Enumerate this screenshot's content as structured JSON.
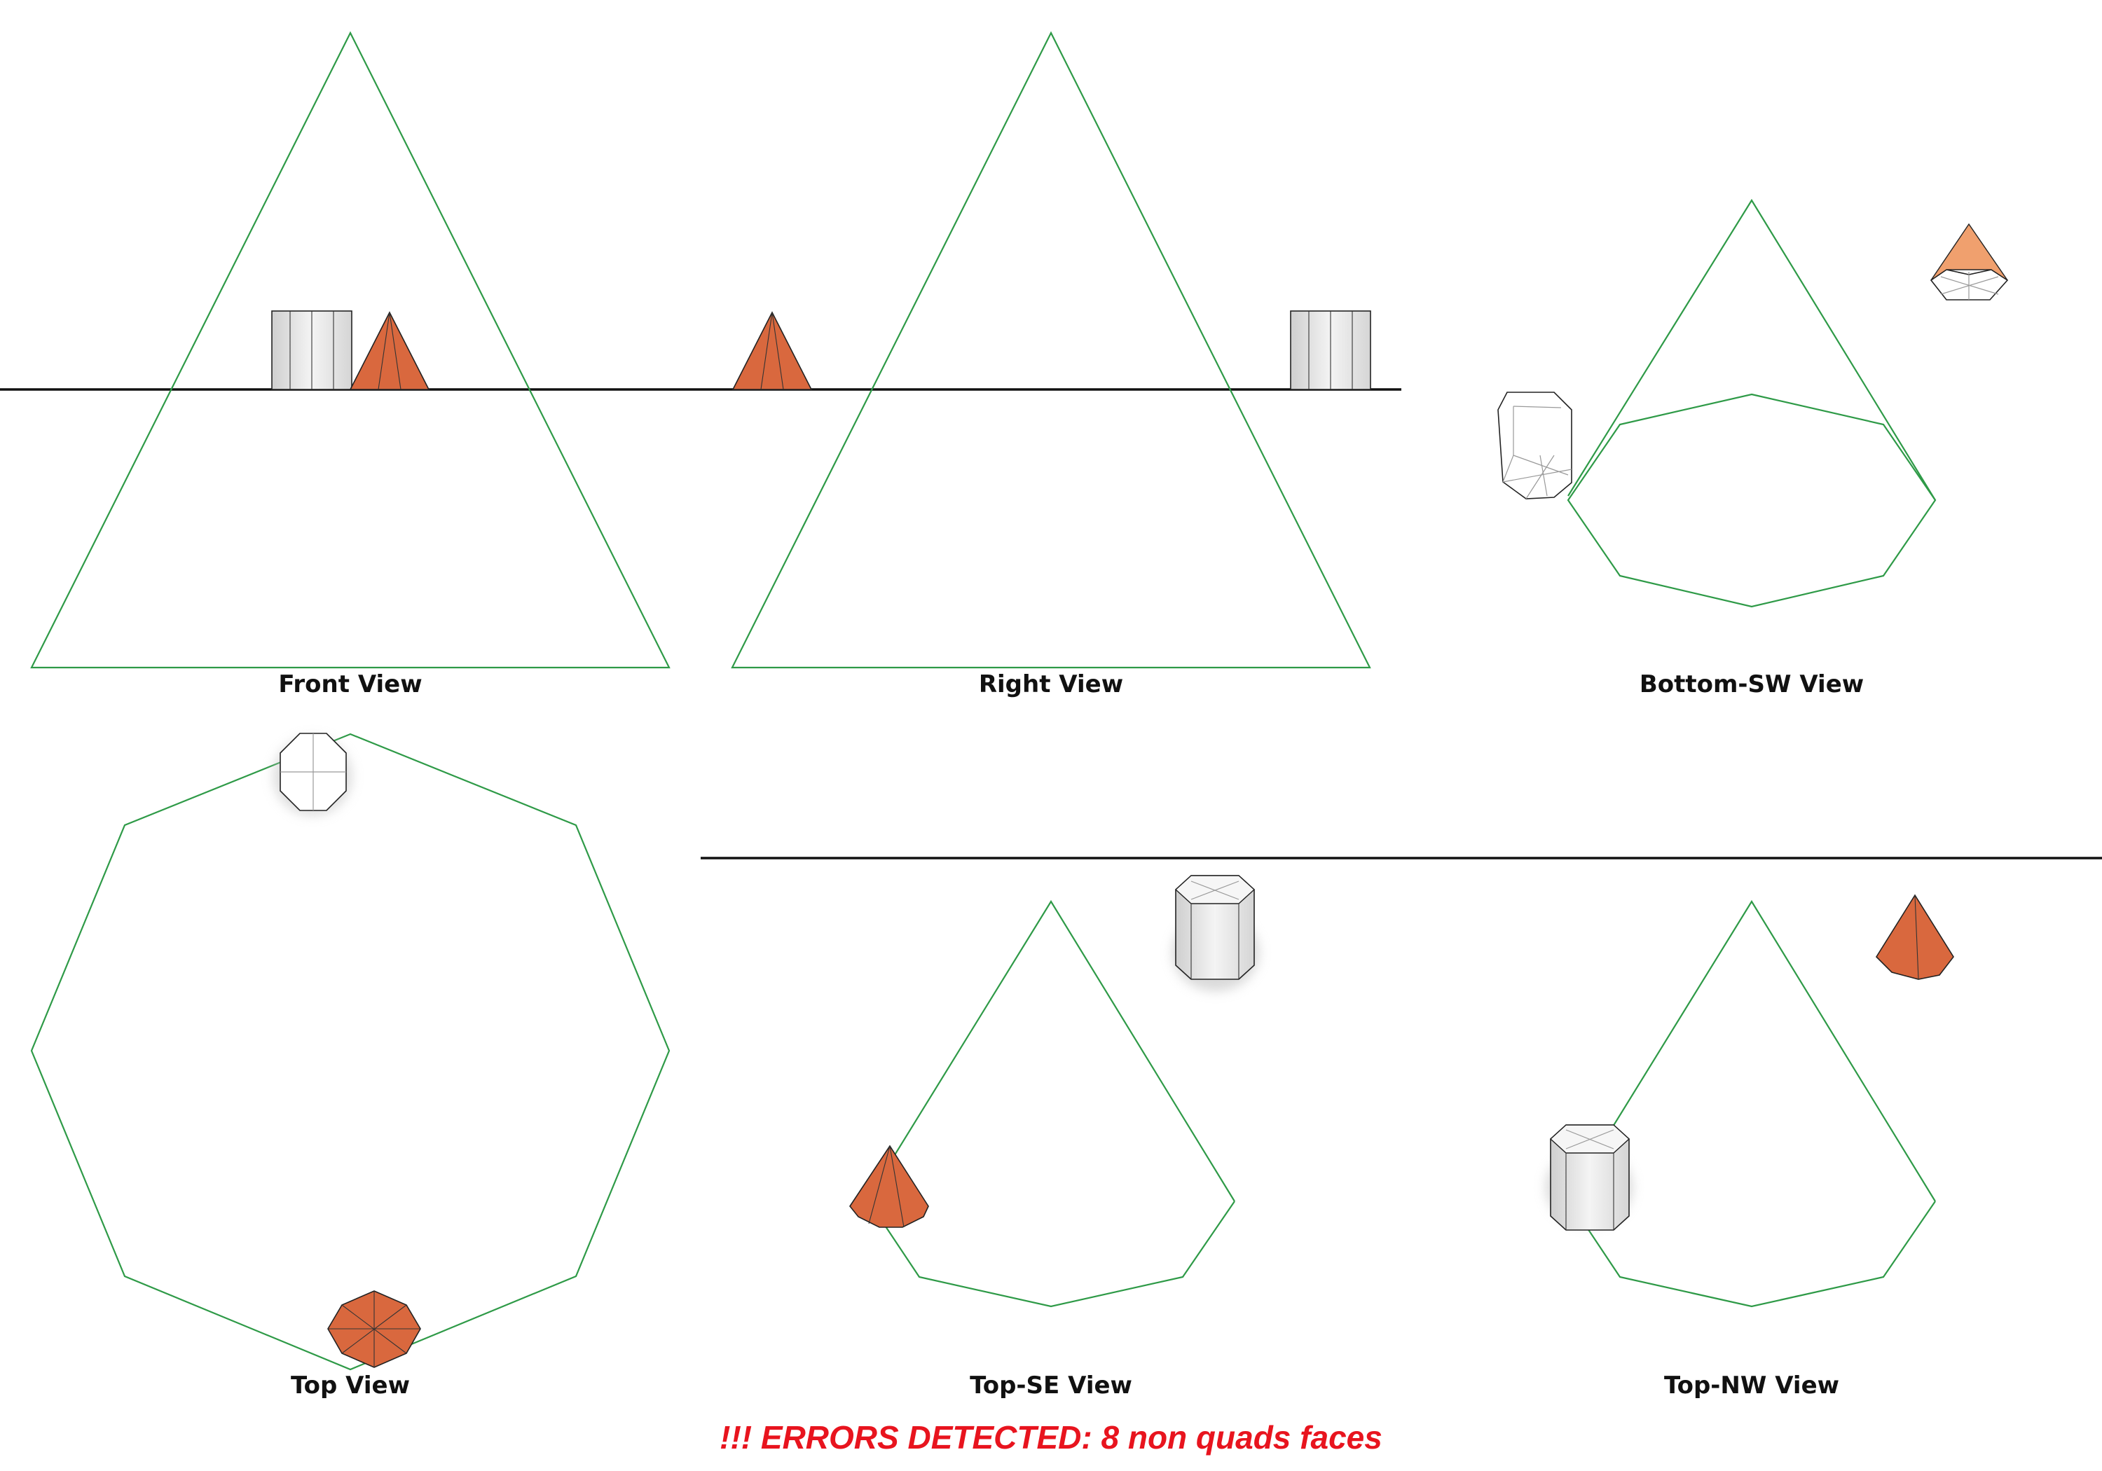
{
  "views": {
    "front": "Front View",
    "right": "Right View",
    "bottom_sw": "Bottom-SW View",
    "top": "Top View",
    "top_se": "Top-SE View",
    "top_nw": "Top-NW View"
  },
  "error_message": "!!! ERRORS DETECTED: 8 non quads faces",
  "colors": {
    "frustum": "#2e9a47",
    "cone": "#d9683e",
    "cone_light": "#f0a06e",
    "cylinder": "#e6e6e6",
    "error": "#e8141e",
    "ground": "#111111"
  },
  "objects": [
    "cylinder-icon",
    "cone-icon"
  ]
}
